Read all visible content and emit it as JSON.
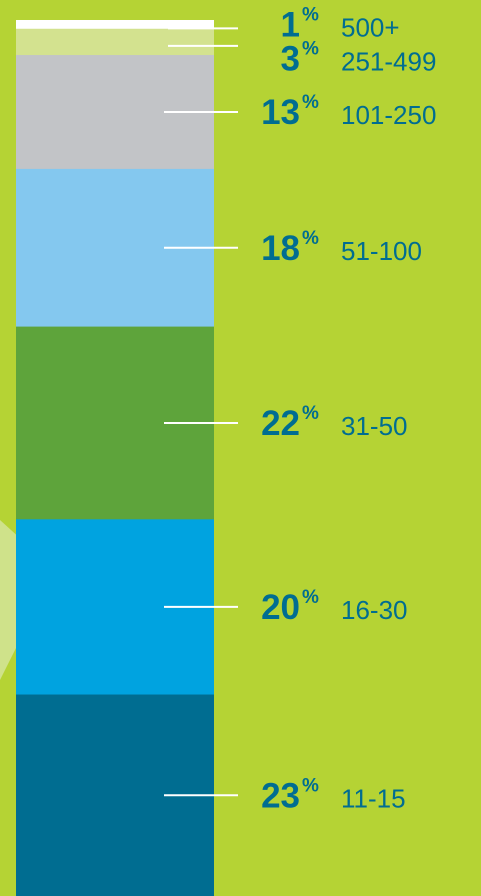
{
  "chart_data": {
    "type": "bar",
    "stacked": true,
    "orientation": "vertical",
    "categories": [
      "500+",
      "251-499",
      "101-250",
      "51-100",
      "31-50",
      "16-30",
      "11-15"
    ],
    "values": [
      1,
      3,
      13,
      18,
      22,
      20,
      23
    ],
    "value_suffix": "%",
    "colors": [
      "#ffffff",
      "#d3e28f",
      "#c2c4c7",
      "#84c8ef",
      "#5ea43b",
      "#00a3e0",
      "#006d91"
    ],
    "title": "",
    "xlabel": "",
    "ylabel": ""
  },
  "theme": {
    "background": "#b5d334",
    "label_color": "#006d91",
    "leader_color": "#ffffff"
  }
}
